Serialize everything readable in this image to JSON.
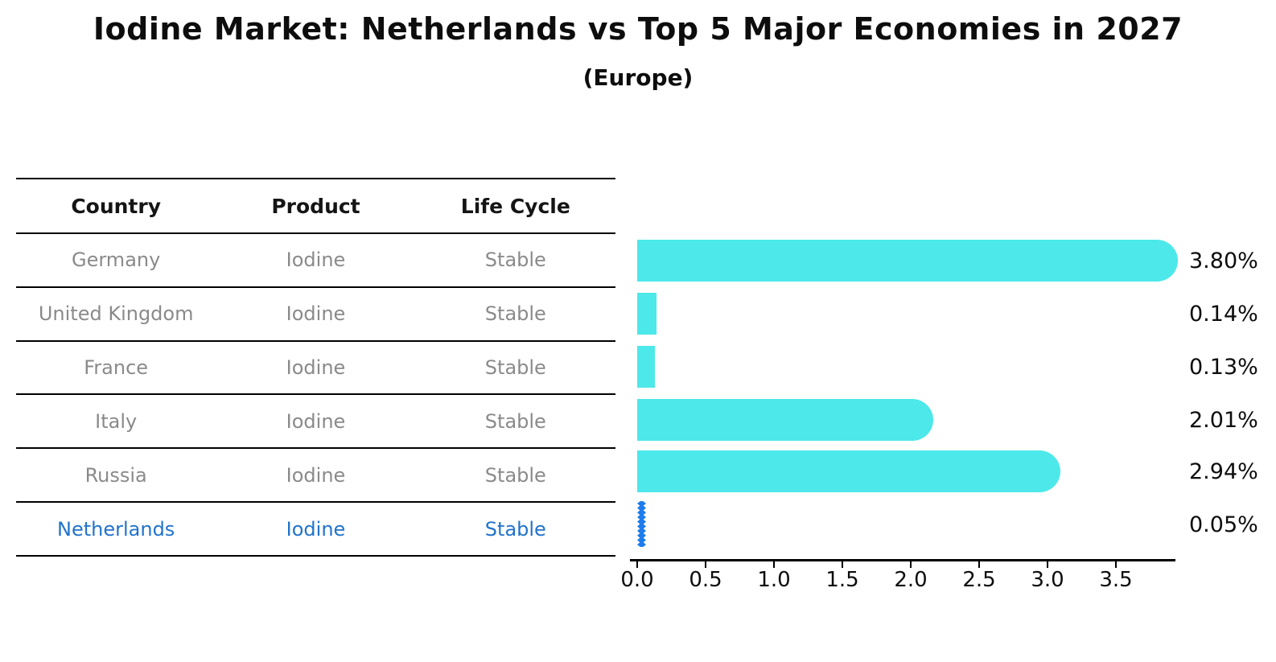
{
  "title": "Iodine Market: Netherlands vs Top 5 Major Economies in 2027",
  "subtitle": "(Europe)",
  "colors": {
    "bar_cyan": "#4de8ea",
    "netherlands_bar_blue": "#1e7ceb",
    "netherlands_text_blue": "#2173cb",
    "row_text_gray": "#8a8a8a",
    "axis_black": "#000000"
  },
  "table": {
    "headers": [
      "Country",
      "Product",
      "Life Cycle"
    ],
    "rows": [
      {
        "country": "Germany",
        "product": "Iodine",
        "life_cycle": "Stable",
        "highlight": false
      },
      {
        "country": "United Kingdom",
        "product": "Iodine",
        "life_cycle": "Stable",
        "highlight": false
      },
      {
        "country": "France",
        "product": "Iodine",
        "life_cycle": "Stable",
        "highlight": false
      },
      {
        "country": "Italy",
        "product": "Iodine",
        "life_cycle": "Stable",
        "highlight": false
      },
      {
        "country": "Russia",
        "product": "Iodine",
        "life_cycle": "Stable",
        "highlight": false
      },
      {
        "country": "Netherlands",
        "product": "Iodine",
        "life_cycle": "Stable",
        "highlight": true
      }
    ]
  },
  "chart_data": {
    "type": "bar",
    "orientation": "horizontal",
    "title": "Iodine Market: Netherlands vs Top 5 Major Economies in 2027 (Europe)",
    "categories": [
      "Germany",
      "United Kingdom",
      "France",
      "Italy",
      "Russia",
      "Netherlands"
    ],
    "values": [
      3.8,
      0.14,
      0.13,
      2.01,
      2.94,
      0.05
    ],
    "value_labels": [
      "3.80%",
      "0.14%",
      "0.13%",
      "2.01%",
      "2.94%",
      "0.05%"
    ],
    "highlight_category": "Netherlands",
    "x_ticks": [
      "0.0",
      "0.5",
      "1.0",
      "1.5",
      "2.0",
      "2.5",
      "3.0",
      "3.5"
    ],
    "xlim": [
      0,
      3.95
    ],
    "grid": false,
    "legend": false
  }
}
